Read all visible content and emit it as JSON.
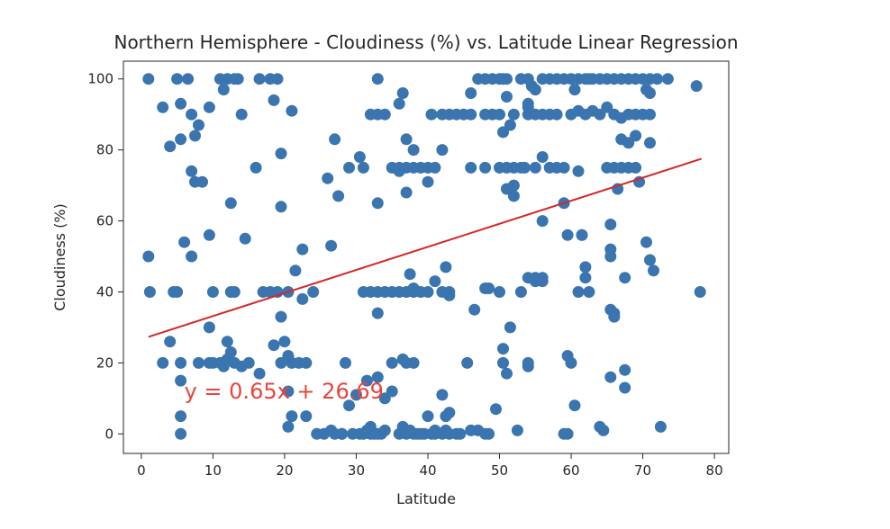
{
  "chart_data": {
    "type": "scatter",
    "title": "Northern Hemisphere - Cloudiness (%) vs. Latitude Linear Regression",
    "xlabel": "Latitude",
    "ylabel": "Cloudiness (%)",
    "xlim": [
      -2.5,
      82
    ],
    "ylim": [
      -5.5,
      105
    ],
    "xticks": [
      "0",
      "10",
      "20",
      "30",
      "40",
      "50",
      "60",
      "70",
      "80"
    ],
    "yticks": [
      "0",
      "20",
      "40",
      "60",
      "80",
      "100"
    ],
    "grid": false,
    "point_color": "#3b75af",
    "line_color": "#d62728",
    "annotation_color": "#e8453c",
    "regression": {
      "slope": 0.65,
      "intercept": 26.69,
      "x_start": 1,
      "x_end": 78.2
    },
    "annotation": {
      "text": "y = 0.65x + 26.69",
      "x": 6,
      "y": 10
    },
    "points": [
      [
        1,
        100
      ],
      [
        3,
        92
      ],
      [
        4,
        81
      ],
      [
        5,
        100
      ],
      [
        5.5,
        93
      ],
      [
        6.5,
        100
      ],
      [
        7,
        90
      ],
      [
        5.5,
        83
      ],
      [
        7.5,
        84
      ],
      [
        8,
        87
      ],
      [
        9.5,
        92
      ],
      [
        7,
        74
      ],
      [
        7.5,
        71
      ],
      [
        8.5,
        71
      ],
      [
        11,
        100
      ],
      [
        11.5,
        97
      ],
      [
        12,
        100
      ],
      [
        13,
        100
      ],
      [
        14,
        90
      ],
      [
        13.5,
        100
      ],
      [
        16.5,
        100
      ],
      [
        18,
        100
      ],
      [
        19,
        100
      ],
      [
        18.5,
        94
      ],
      [
        21,
        91
      ],
      [
        16,
        75
      ],
      [
        19.5,
        79
      ],
      [
        12.5,
        65
      ],
      [
        19.5,
        64
      ],
      [
        26,
        72
      ],
      [
        27,
        83
      ],
      [
        29,
        75
      ],
      [
        30.5,
        78
      ],
      [
        31,
        75
      ],
      [
        27.5,
        67
      ],
      [
        26.5,
        53
      ],
      [
        22.5,
        52
      ],
      [
        21.5,
        46
      ],
      [
        20.5,
        40
      ],
      [
        22.5,
        38
      ],
      [
        24,
        40
      ],
      [
        18,
        40
      ],
      [
        19,
        40
      ],
      [
        19.5,
        33
      ],
      [
        17,
        40
      ],
      [
        13,
        40
      ],
      [
        12.5,
        40
      ],
      [
        10,
        40
      ],
      [
        4.5,
        40
      ],
      [
        5,
        40
      ],
      [
        1,
        50
      ],
      [
        1.2,
        40
      ],
      [
        6,
        54
      ],
      [
        7,
        50
      ],
      [
        9.5,
        56
      ],
      [
        14.5,
        55
      ],
      [
        9.5,
        30
      ],
      [
        4,
        26
      ],
      [
        3,
        20
      ],
      [
        5.5,
        20
      ],
      [
        5.5,
        15
      ],
      [
        5.5,
        5
      ],
      [
        5.5,
        0
      ],
      [
        8,
        20
      ],
      [
        9.5,
        20
      ],
      [
        10,
        20
      ],
      [
        11,
        20
      ],
      [
        11.5,
        19
      ],
      [
        12,
        21
      ],
      [
        12,
        26
      ],
      [
        12.5,
        23
      ],
      [
        13,
        20
      ],
      [
        14,
        19
      ],
      [
        15,
        20
      ],
      [
        16.5,
        17
      ],
      [
        18.5,
        25
      ],
      [
        19.5,
        20
      ],
      [
        20,
        26
      ],
      [
        20.5,
        22
      ],
      [
        21,
        20
      ],
      [
        22,
        20
      ],
      [
        23,
        20
      ],
      [
        20.5,
        12
      ],
      [
        21,
        5
      ],
      [
        20.5,
        2
      ],
      [
        23,
        5
      ],
      [
        24.5,
        0
      ],
      [
        25.5,
        0
      ],
      [
        26.5,
        1
      ],
      [
        28,
        0
      ],
      [
        28.5,
        20
      ],
      [
        29,
        8
      ],
      [
        30,
        11
      ],
      [
        31,
        0
      ],
      [
        32,
        0
      ],
      [
        33,
        0
      ],
      [
        34,
        1
      ],
      [
        35,
        20
      ],
      [
        36.5,
        21
      ],
      [
        37,
        20
      ],
      [
        38,
        20
      ],
      [
        35,
        12
      ],
      [
        32,
        2
      ],
      [
        27,
        0
      ],
      [
        28,
        0
      ],
      [
        29.5,
        0
      ],
      [
        30.5,
        0
      ],
      [
        31.5,
        1
      ],
      [
        32.5,
        0
      ],
      [
        33.5,
        0
      ],
      [
        36,
        0
      ],
      [
        37,
        0
      ],
      [
        37.5,
        1
      ],
      [
        38,
        0
      ],
      [
        38.5,
        0
      ],
      [
        39.5,
        0
      ],
      [
        40.5,
        0
      ],
      [
        41,
        1
      ],
      [
        42,
        0
      ],
      [
        42.5,
        1
      ],
      [
        43,
        0
      ],
      [
        44,
        0
      ],
      [
        44.5,
        0
      ],
      [
        45.5,
        20
      ],
      [
        46.5,
        35
      ],
      [
        48,
        41
      ],
      [
        50,
        40
      ],
      [
        49.5,
        7
      ],
      [
        50.5,
        20
      ],
      [
        51,
        17
      ],
      [
        51.5,
        30
      ],
      [
        50.5,
        24
      ],
      [
        53,
        40
      ],
      [
        54,
        44
      ],
      [
        55,
        43
      ],
      [
        56,
        43
      ],
      [
        54,
        20
      ],
      [
        54,
        19
      ],
      [
        52.5,
        1
      ],
      [
        47,
        1
      ],
      [
        48,
        0
      ],
      [
        48.5,
        0
      ],
      [
        48.5,
        41
      ],
      [
        42,
        11
      ],
      [
        42.5,
        5
      ],
      [
        43,
        6
      ],
      [
        42,
        40
      ],
      [
        42.5,
        47
      ],
      [
        43,
        39
      ],
      [
        43,
        40
      ],
      [
        42,
        80
      ],
      [
        40.5,
        90
      ],
      [
        42,
        90
      ],
      [
        43,
        90
      ],
      [
        44,
        90
      ],
      [
        45,
        90
      ],
      [
        46,
        90
      ],
      [
        46,
        96
      ],
      [
        47,
        100
      ],
      [
        48,
        100
      ],
      [
        49,
        100
      ],
      [
        50,
        100
      ],
      [
        50.5,
        100
      ],
      [
        51,
        95
      ],
      [
        51,
        100
      ],
      [
        48,
        90
      ],
      [
        49,
        90
      ],
      [
        50,
        90
      ],
      [
        52,
        90
      ],
      [
        50.5,
        85
      ],
      [
        51.5,
        87
      ],
      [
        52,
        70
      ],
      [
        52,
        67
      ],
      [
        51,
        69
      ],
      [
        46,
        75
      ],
      [
        48,
        75
      ],
      [
        50,
        75
      ],
      [
        51,
        75
      ],
      [
        52,
        75
      ],
      [
        53,
        75
      ],
      [
        55,
        75
      ],
      [
        56,
        78
      ],
      [
        57,
        75
      ],
      [
        58,
        75
      ],
      [
        59,
        75
      ],
      [
        54,
        90
      ],
      [
        55,
        90
      ],
      [
        56,
        90
      ],
      [
        57,
        90
      ],
      [
        58,
        90
      ],
      [
        53,
        100
      ],
      [
        54,
        100
      ],
      [
        54.5,
        98
      ],
      [
        55,
        97
      ],
      [
        56,
        100
      ],
      [
        57,
        100
      ],
      [
        58,
        100
      ],
      [
        59,
        100
      ],
      [
        54,
        93
      ],
      [
        54,
        92
      ],
      [
        53.5,
        75
      ],
      [
        56,
        60
      ],
      [
        59,
        65
      ],
      [
        59.5,
        56
      ],
      [
        60,
        100
      ],
      [
        60.5,
        97
      ],
      [
        61,
        100
      ],
      [
        62,
        100
      ],
      [
        62.5,
        100
      ],
      [
        63,
        100
      ],
      [
        64,
        100
      ],
      [
        65,
        100
      ],
      [
        66,
        100
      ],
      [
        67,
        100
      ],
      [
        68,
        100
      ],
      [
        69,
        100
      ],
      [
        70,
        100
      ],
      [
        71,
        100
      ],
      [
        72,
        100
      ],
      [
        73.5,
        100
      ],
      [
        60,
        90
      ],
      [
        61,
        91
      ],
      [
        62,
        90
      ],
      [
        63,
        91
      ],
      [
        64,
        90
      ],
      [
        65,
        92
      ],
      [
        66,
        90
      ],
      [
        67,
        89
      ],
      [
        68,
        90
      ],
      [
        69,
        90
      ],
      [
        70,
        90
      ],
      [
        71,
        90
      ],
      [
        71,
        96
      ],
      [
        70.5,
        97
      ],
      [
        67,
        83
      ],
      [
        68,
        82
      ],
      [
        69,
        84
      ],
      [
        71,
        82
      ],
      [
        61,
        74
      ],
      [
        65,
        75
      ],
      [
        66,
        75
      ],
      [
        67,
        75
      ],
      [
        68,
        75
      ],
      [
        69,
        75
      ],
      [
        66.5,
        69
      ],
      [
        69.5,
        71
      ],
      [
        65.5,
        59
      ],
      [
        65.5,
        52
      ],
      [
        65.5,
        50
      ],
      [
        61.5,
        56
      ],
      [
        62,
        47
      ],
      [
        62,
        44
      ],
      [
        61,
        40
      ],
      [
        62.5,
        40
      ],
      [
        65.5,
        35
      ],
      [
        66,
        34
      ],
      [
        66,
        33
      ],
      [
        67.5,
        44
      ],
      [
        70.5,
        54
      ],
      [
        71,
        49
      ],
      [
        71.5,
        46
      ],
      [
        78,
        40
      ],
      [
        77.5,
        98
      ],
      [
        59.5,
        22
      ],
      [
        60,
        20
      ],
      [
        60.5,
        8
      ],
      [
        59.5,
        0
      ],
      [
        59,
        0
      ],
      [
        64,
        2
      ],
      [
        64.5,
        1
      ],
      [
        65.5,
        16
      ],
      [
        67.5,
        18
      ],
      [
        67.5,
        13
      ],
      [
        72.5,
        2
      ],
      [
        61.5,
        56
      ],
      [
        36,
        93
      ],
      [
        36.5,
        96
      ],
      [
        37,
        75
      ],
      [
        38,
        75
      ],
      [
        39,
        75
      ],
      [
        40,
        75
      ],
      [
        41,
        75
      ],
      [
        38,
        80
      ],
      [
        37,
        83
      ],
      [
        40,
        71
      ],
      [
        37,
        68
      ],
      [
        36,
        75
      ],
      [
        32,
        90
      ],
      [
        33,
        90
      ],
      [
        34,
        90
      ],
      [
        33,
        100
      ],
      [
        35,
        75
      ],
      [
        36,
        74
      ],
      [
        31,
        40
      ],
      [
        32,
        40
      ],
      [
        33,
        40
      ],
      [
        34,
        40
      ],
      [
        35,
        40
      ],
      [
        36,
        40
      ],
      [
        37,
        40
      ],
      [
        38,
        40
      ],
      [
        39,
        40
      ],
      [
        40,
        40
      ],
      [
        41,
        43
      ],
      [
        38,
        41
      ],
      [
        37.5,
        45
      ],
      [
        33,
        34
      ],
      [
        33,
        65
      ],
      [
        31.5,
        15
      ],
      [
        33,
        16
      ],
      [
        34,
        10
      ],
      [
        36.5,
        2
      ],
      [
        39,
        0
      ],
      [
        40,
        5
      ],
      [
        41,
        0
      ],
      [
        46,
        1
      ],
      [
        55,
        44
      ],
      [
        56,
        44
      ]
    ]
  }
}
